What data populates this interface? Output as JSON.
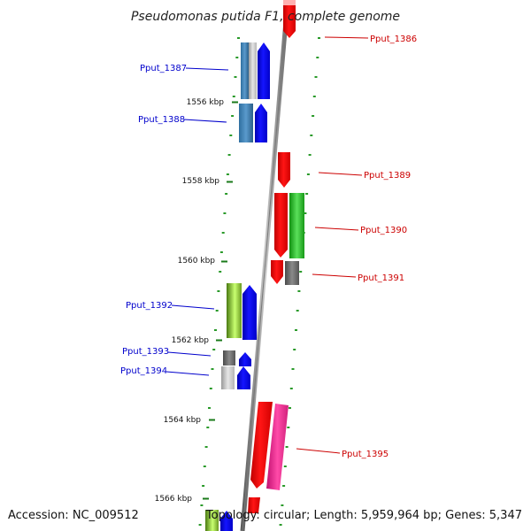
{
  "title": "Pseudomonas putida F1, complete genome",
  "footer": {
    "accession": "Accession: NC_009512",
    "topology": "Topology: circular; Length: 5,959,964 bp; Genes: 5,347"
  },
  "colors": {
    "axis": "#8a8a8a",
    "tick": "#1a7a1a",
    "dot": "#2a9a2a",
    "plus_strand_label": "#0000cc",
    "minus_strand_label": "#cc0000"
  },
  "scale": {
    "ticks": [
      {
        "label": "1556 kbp"
      },
      {
        "label": "1558 kbp"
      },
      {
        "label": "1560 kbp"
      },
      {
        "label": "1562 kbp"
      },
      {
        "label": "1564 kbp"
      },
      {
        "label": "1566 kbp"
      }
    ]
  },
  "genes": [
    {
      "id": "Pput_1386",
      "label": "Pput_1386",
      "strand": "minus"
    },
    {
      "id": "Pput_1387",
      "label": "Pput_1387",
      "strand": "plus"
    },
    {
      "id": "Pput_1388",
      "label": "Pput_1388",
      "strand": "plus"
    },
    {
      "id": "Pput_1389",
      "label": "Pput_1389",
      "strand": "minus"
    },
    {
      "id": "Pput_1390",
      "label": "Pput_1390",
      "strand": "minus"
    },
    {
      "id": "Pput_1391",
      "label": "Pput_1391",
      "strand": "minus"
    },
    {
      "id": "Pput_1392",
      "label": "Pput_1392",
      "strand": "plus"
    },
    {
      "id": "Pput_1393",
      "label": "Pput_1393",
      "strand": "plus"
    },
    {
      "id": "Pput_1394",
      "label": "Pput_1394",
      "strand": "plus"
    },
    {
      "id": "Pput_1395",
      "label": "Pput_1395",
      "strand": "minus"
    }
  ]
}
